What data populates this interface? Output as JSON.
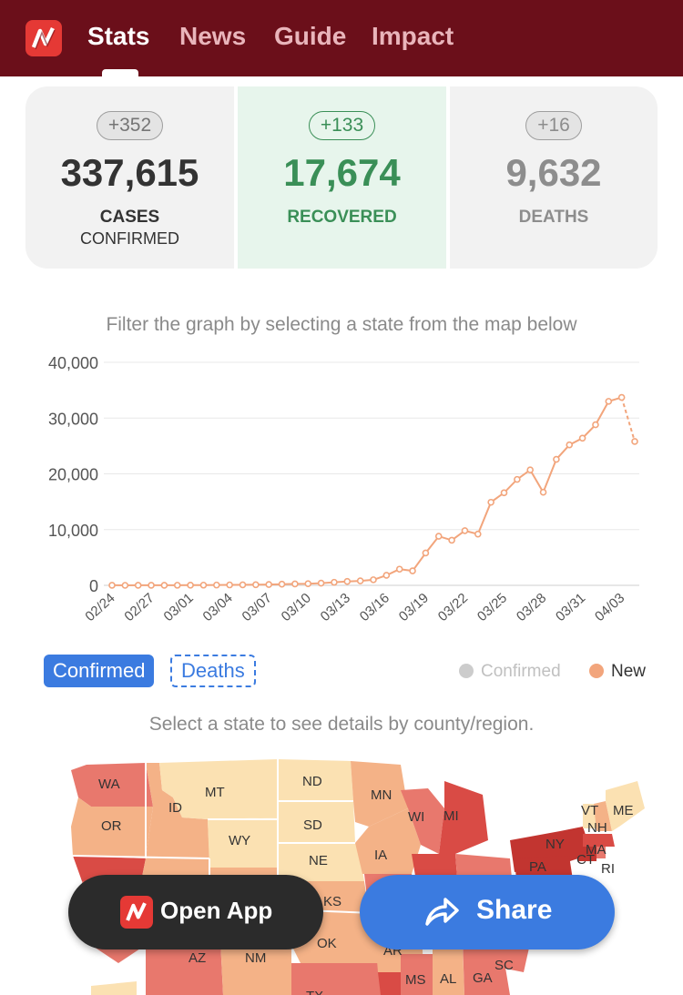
{
  "nav": {
    "items": [
      "Stats",
      "News",
      "Guide",
      "Impact"
    ]
  },
  "summary": {
    "cases": {
      "delta": "+352",
      "value": "337,615",
      "label1": "CASES",
      "label2": "CONFIRMED"
    },
    "recovered": {
      "delta": "+133",
      "value": "17,674",
      "label1": "RECOVERED"
    },
    "deaths": {
      "delta": "+16",
      "value": "9,632",
      "label1": "DEATHS"
    }
  },
  "chart_hint": "Filter the graph by selecting a state from the map below",
  "chart_data": {
    "type": "line",
    "yticks": [
      "40,000",
      "30,000",
      "20,000",
      "10,000",
      "0"
    ],
    "ylim": [
      0,
      40000
    ],
    "xticks": [
      "02/24",
      "02/27",
      "03/01",
      "03/04",
      "03/07",
      "03/10",
      "03/13",
      "03/16",
      "03/19",
      "03/22",
      "03/25",
      "03/28",
      "03/31",
      "04/03"
    ],
    "series": [
      {
        "name": "New",
        "color": "#f2a57c",
        "values": [
          10,
          0,
          10,
          10,
          10,
          20,
          30,
          40,
          60,
          80,
          100,
          120,
          150,
          220,
          260,
          300,
          400,
          550,
          700,
          800,
          1000,
          1800,
          2900,
          2600,
          5800,
          8800,
          8100,
          9800,
          9200,
          14900,
          16600,
          19000,
          20700,
          16700,
          22600,
          25200,
          26400,
          28800,
          33000,
          33700,
          25800
        ]
      }
    ],
    "grid": true
  },
  "tabs": {
    "confirmed": "Confirmed",
    "deaths": "Deaths"
  },
  "legend": [
    {
      "label": "Confirmed",
      "color": "#cccccc"
    },
    {
      "label": "New",
      "color": "#f2a57c"
    }
  ],
  "map_hint": "Select a state to see details by county/region.",
  "states": [
    "WA",
    "OR",
    "ID",
    "MT",
    "WY",
    "ND",
    "SD",
    "NE",
    "MN",
    "IA",
    "WI",
    "MI",
    "VT",
    "ME",
    "NH",
    "MA",
    "NY",
    "CT",
    "RI",
    "PA",
    "KS",
    "OK",
    "AZ",
    "NM",
    "AR",
    "MS",
    "AL",
    "GA",
    "SC",
    "TX"
  ],
  "actions": {
    "open": "Open App",
    "share": "Share"
  }
}
